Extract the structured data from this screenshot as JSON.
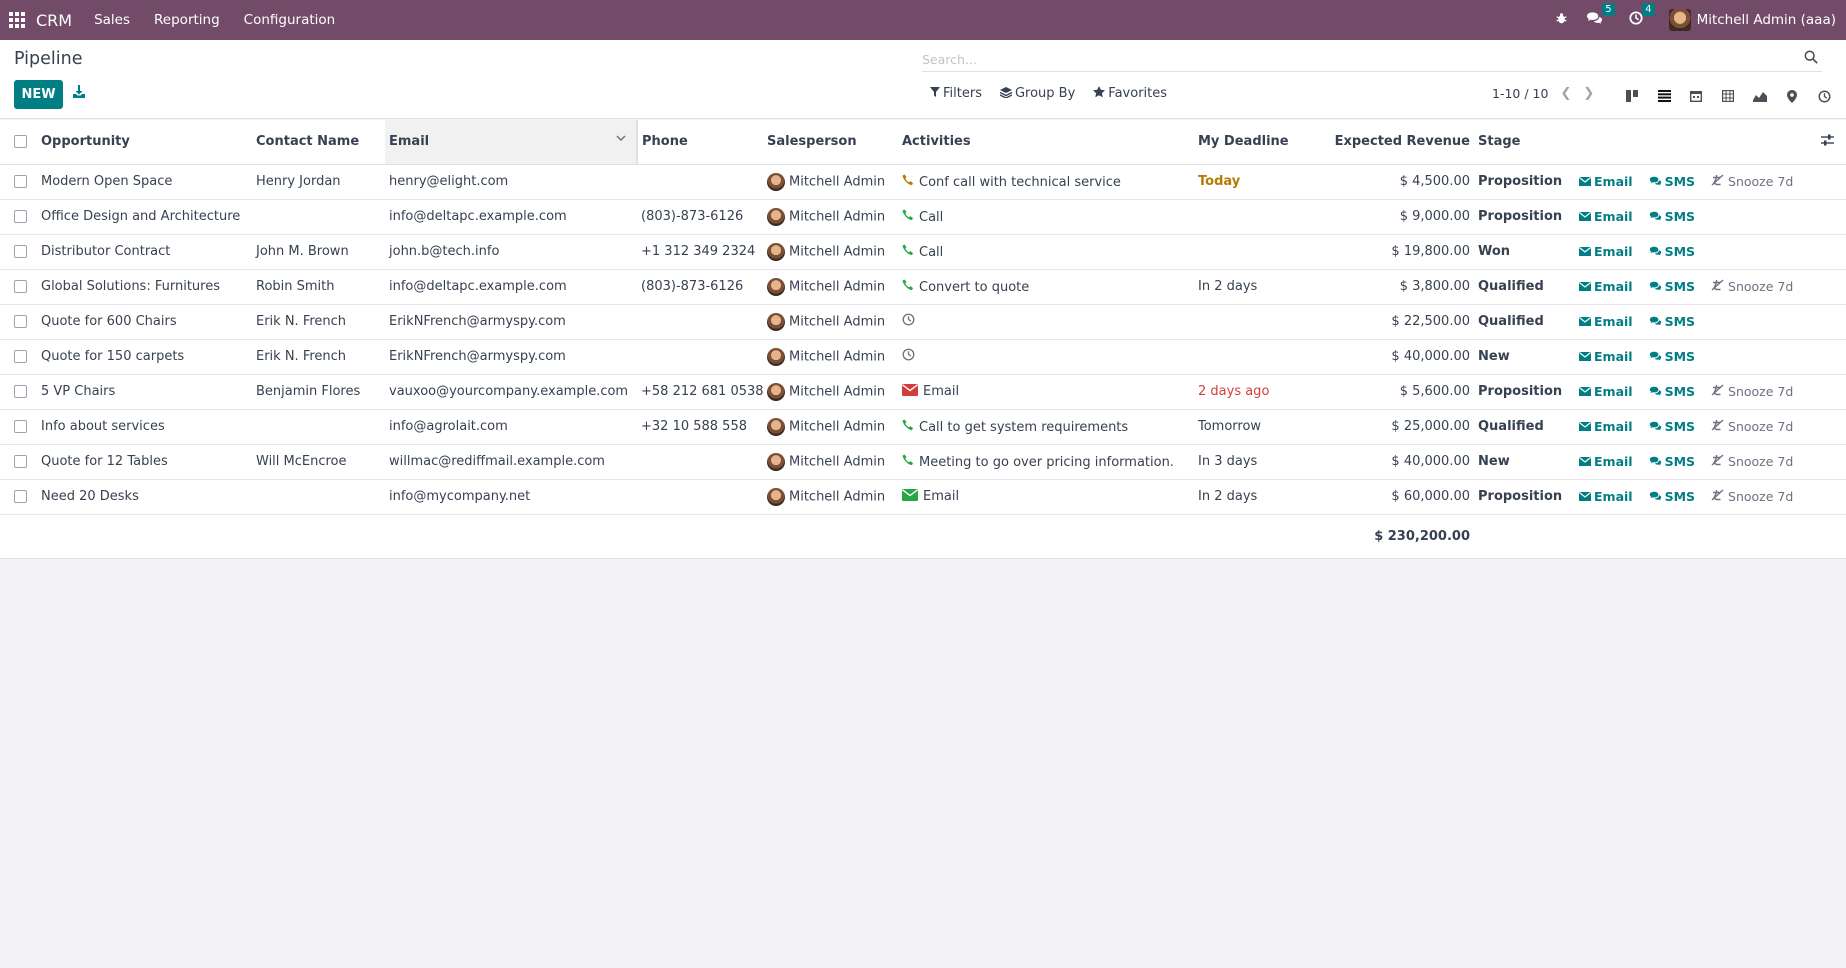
{
  "navbar": {
    "app_name": "CRM",
    "menus": [
      "Sales",
      "Reporting",
      "Configuration"
    ],
    "messages_count": "5",
    "activities_count": "4",
    "user_name": "Mitchell Admin (aaa)"
  },
  "control": {
    "title": "Pipeline",
    "new_label": "NEW",
    "search_placeholder": "Search...",
    "filters_label": "Filters",
    "group_by_label": "Group By",
    "favorites_label": "Favorites",
    "pager": "1-10 / 10"
  },
  "table": {
    "headers": {
      "opportunity": "Opportunity",
      "contact": "Contact Name",
      "email": "Email",
      "phone": "Phone",
      "salesperson": "Salesperson",
      "activities": "Activities",
      "deadline": "My Deadline",
      "revenue": "Expected Revenue",
      "stage": "Stage"
    },
    "rows": [
      {
        "opportunity": "Modern Open Space",
        "contact": "Henry Jordan",
        "email": "henry@elight.com",
        "phone": "",
        "salesperson": "Mitchell Admin",
        "activity_type": "phone-warn",
        "activity": "Conf call with technical service",
        "deadline": "Today",
        "deadline_state": "today",
        "revenue": "$ 4,500.00",
        "stage": "Proposition",
        "snooze": true
      },
      {
        "opportunity": "Office Design and Architecture",
        "contact": "",
        "email": "info@deltapc.example.com",
        "phone": "(803)-873-6126",
        "salesperson": "Mitchell Admin",
        "activity_type": "phone",
        "activity": "Call",
        "deadline": "",
        "deadline_state": "",
        "revenue": "$ 9,000.00",
        "stage": "Proposition",
        "snooze": false
      },
      {
        "opportunity": "Distributor Contract",
        "contact": "John M. Brown",
        "email": "john.b@tech.info",
        "phone": "+1 312 349 2324",
        "salesperson": "Mitchell Admin",
        "activity_type": "phone",
        "activity": "Call",
        "deadline": "",
        "deadline_state": "",
        "revenue": "$ 19,800.00",
        "stage": "Won",
        "snooze": false
      },
      {
        "opportunity": "Global Solutions: Furnitures",
        "contact": "Robin Smith",
        "email": "info@deltapc.example.com",
        "phone": "(803)-873-6126",
        "salesperson": "Mitchell Admin",
        "activity_type": "phone",
        "activity": "Convert to quote",
        "deadline": "In 2 days",
        "deadline_state": "planned",
        "revenue": "$ 3,800.00",
        "stage": "Qualified",
        "snooze": true
      },
      {
        "opportunity": "Quote for 600 Chairs",
        "contact": "Erik N. French",
        "email": "ErikNFrench@armyspy.com",
        "phone": "",
        "salesperson": "Mitchell Admin",
        "activity_type": "clock",
        "activity": "",
        "deadline": "",
        "deadline_state": "",
        "revenue": "$ 22,500.00",
        "stage": "Qualified",
        "snooze": false
      },
      {
        "opportunity": "Quote for 150 carpets",
        "contact": "Erik N. French",
        "email": "ErikNFrench@armyspy.com",
        "phone": "",
        "salesperson": "Mitchell Admin",
        "activity_type": "clock",
        "activity": "",
        "deadline": "",
        "deadline_state": "",
        "revenue": "$ 40,000.00",
        "stage": "New",
        "snooze": false
      },
      {
        "opportunity": "5 VP Chairs",
        "contact": "Benjamin Flores",
        "email": "vauxoo@yourcompany.example.com",
        "phone": "+58 212 681 0538",
        "salesperson": "Mitchell Admin",
        "activity_type": "email-red",
        "activity": "Email",
        "deadline": "2 days ago",
        "deadline_state": "overdue",
        "revenue": "$ 5,600.00",
        "stage": "Proposition",
        "snooze": true
      },
      {
        "opportunity": "Info about services",
        "contact": "",
        "email": "info@agrolait.com",
        "phone": "+32 10 588 558",
        "salesperson": "Mitchell Admin",
        "activity_type": "phone",
        "activity": "Call to get system requirements",
        "deadline": "Tomorrow",
        "deadline_state": "planned",
        "revenue": "$ 25,000.00",
        "stage": "Qualified",
        "snooze": true
      },
      {
        "opportunity": "Quote for 12 Tables",
        "contact": "Will McEncroe",
        "email": "willmac@rediffmail.example.com",
        "phone": "",
        "salesperson": "Mitchell Admin",
        "activity_type": "phone",
        "activity": "Meeting to go over pricing information.",
        "deadline": "In 3 days",
        "deadline_state": "planned",
        "revenue": "$ 40,000.00",
        "stage": "New",
        "snooze": true
      },
      {
        "opportunity": "Need 20 Desks",
        "contact": "",
        "email": "info@mycompany.net",
        "phone": "",
        "salesperson": "Mitchell Admin",
        "activity_type": "email-green",
        "activity": "Email",
        "deadline": "In 2 days",
        "deadline_state": "planned",
        "revenue": "$ 60,000.00",
        "stage": "Proposition",
        "snooze": true
      }
    ],
    "row_buttons": {
      "email": "Email",
      "sms": "SMS",
      "snooze": "Snooze 7d"
    },
    "total_revenue": "$ 230,200.00"
  },
  "colors": {
    "brand": "#714b67",
    "primary": "#017e84",
    "today": "#b57c00",
    "overdue": "#d23f3a",
    "phone": "#28a745"
  }
}
